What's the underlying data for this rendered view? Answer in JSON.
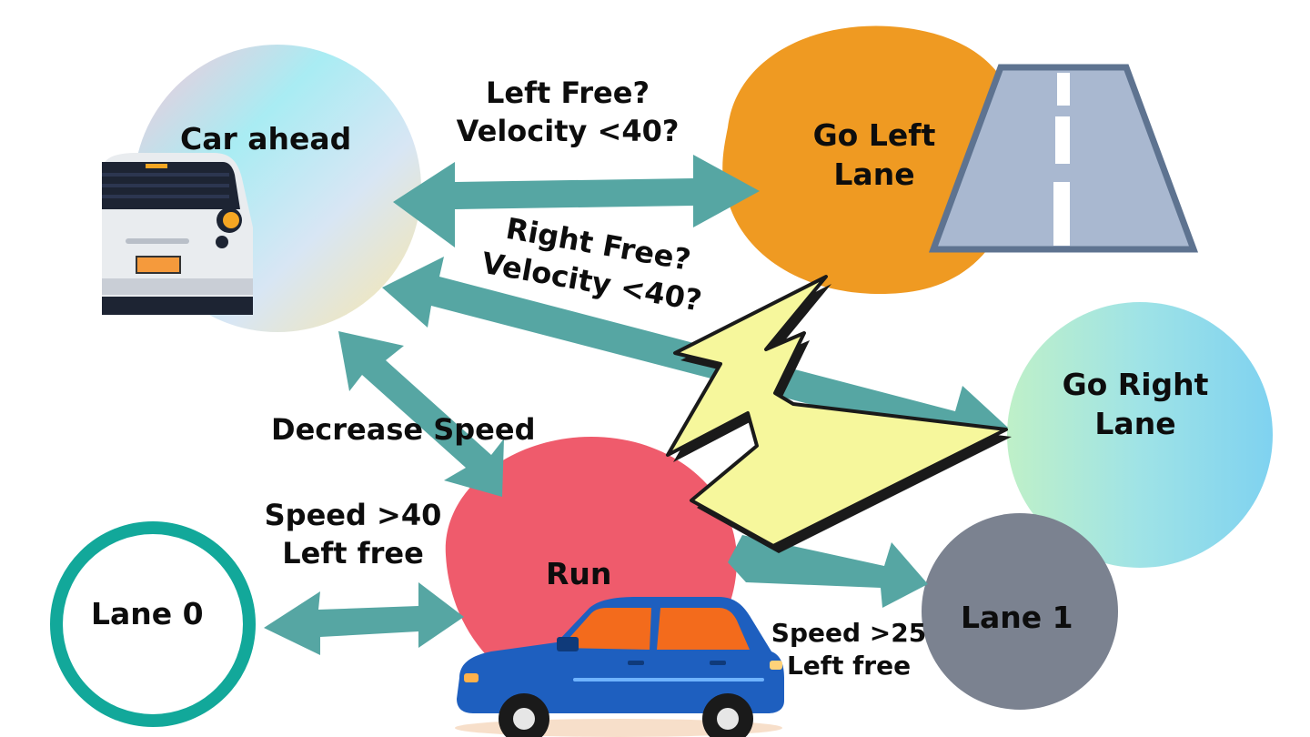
{
  "nodes": {
    "car_ahead": {
      "label": "Car ahead"
    },
    "go_left": {
      "line1": "Go Left",
      "line2": "Lane"
    },
    "go_right": {
      "line1": "Go Right",
      "line2": "Lane"
    },
    "run": {
      "label": "Run"
    },
    "lane0": {
      "label": "Lane 0"
    },
    "lane1": {
      "label": "Lane 1"
    }
  },
  "edges": {
    "left_free": {
      "line1": "Left Free?",
      "line2": "Velocity <40?"
    },
    "right_free": {
      "line1": "Right Free?",
      "line2": "Velocity <40?"
    },
    "decrease": {
      "label": "Decrease Speed"
    },
    "speed40": {
      "line1": "Speed >40",
      "line2": "Left free"
    },
    "speed25": {
      "line1": "Speed >25",
      "line2": "Left free"
    }
  },
  "colors": {
    "arrow": "#56a6a3",
    "go_left_blob": "#ef9a22",
    "run_blob": "#ef5b6c",
    "lane0_ring": "#12a89a",
    "lane1_fill": "#7b8290",
    "road": "#a9b8d0",
    "lightning": "#f6f79c",
    "car_blue": "#1e5fbf"
  },
  "icons": [
    "car-front-icon",
    "road-icon",
    "lightning-icon",
    "blue-car-icon"
  ]
}
